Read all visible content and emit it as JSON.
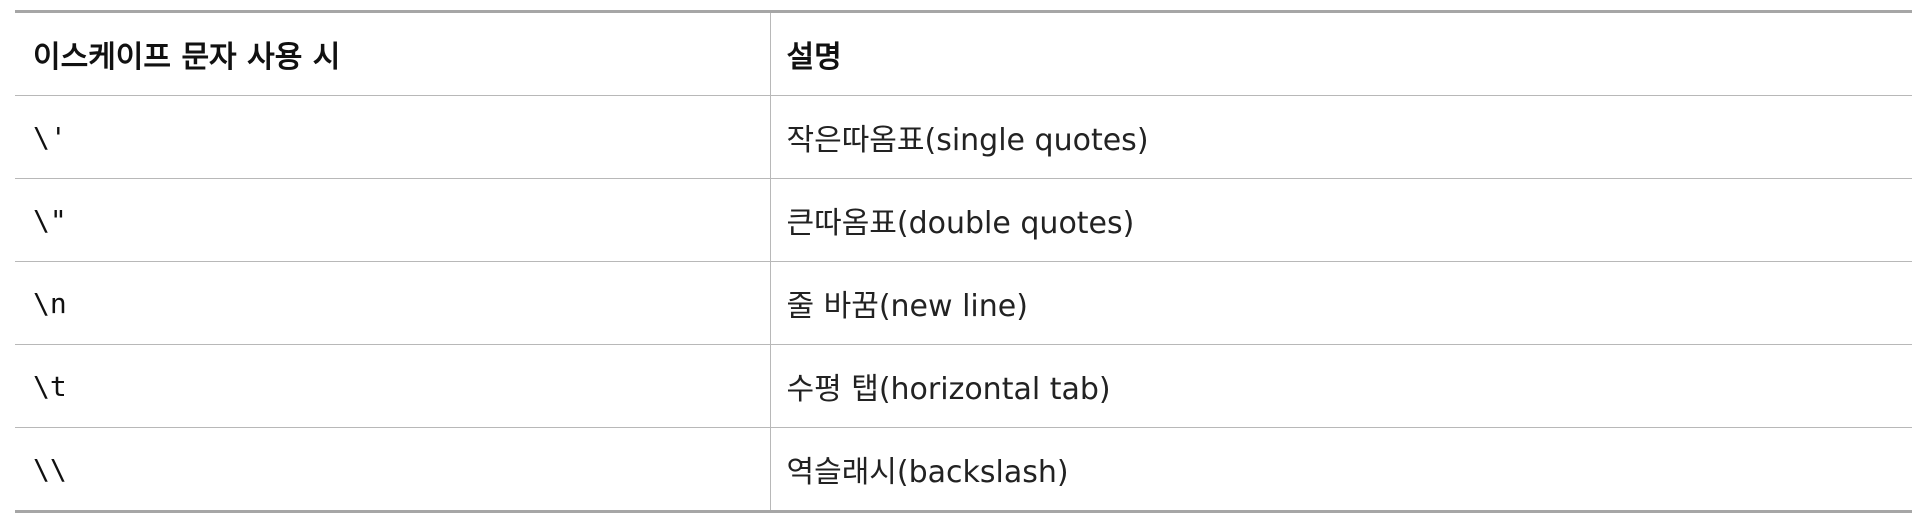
{
  "table": {
    "headers": [
      "이스케이프 문자 사용 시",
      "설명"
    ],
    "rows": [
      {
        "escape": "\\'",
        "description": "작은따옴표(single quotes)"
      },
      {
        "escape": "\\\"",
        "description": "큰따옴표(double quotes)"
      },
      {
        "escape": "\\n",
        "description": "줄 바꿈(new line)"
      },
      {
        "escape": "\\t",
        "description": "수평 탭(horizontal tab)"
      },
      {
        "escape": "\\\\",
        "description": "역슬래시(backslash)"
      }
    ]
  }
}
